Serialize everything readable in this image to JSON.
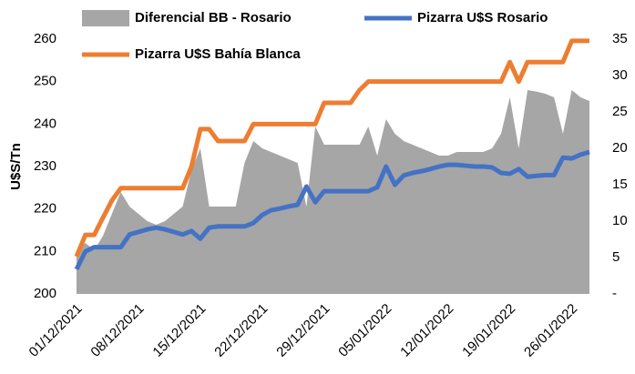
{
  "chart_data": {
    "type": "line",
    "y_label": "U$S/Tn",
    "legend": "top",
    "categories": [
      "01/12/2021",
      null,
      null,
      null,
      null,
      null,
      null,
      "08/12/2021",
      null,
      null,
      null,
      null,
      null,
      null,
      "15/12/2021",
      null,
      null,
      null,
      null,
      null,
      null,
      "22/12/2021",
      null,
      null,
      null,
      null,
      null,
      null,
      "29/12/2021",
      null,
      null,
      null,
      null,
      null,
      null,
      "05/01/2022",
      null,
      null,
      null,
      null,
      null,
      null,
      "12/01/2022",
      null,
      null,
      null,
      null,
      null,
      null,
      "19/01/2022",
      null,
      null,
      null,
      null,
      null,
      null,
      "26/01/2022",
      null,
      null
    ],
    "series": [
      {
        "name": "Diferencial BB - Rosario",
        "type": "area",
        "axis": "y2",
        "color": "#a6a6a6",
        "values": [
          6,
          7,
          6,
          8,
          11,
          14,
          12,
          11,
          10,
          9.5,
          10,
          11,
          12,
          17,
          20,
          12,
          12,
          12,
          12,
          18,
          21,
          20,
          19.5,
          19,
          18.5,
          18,
          12,
          23,
          20.5,
          20.5,
          20.5,
          20.5,
          20.5,
          23,
          19,
          24,
          22,
          21,
          20.5,
          20,
          19.5,
          19,
          19,
          19.5,
          19.5,
          19.5,
          19.5,
          20,
          22,
          27,
          20,
          28,
          27.8,
          27.5,
          27,
          22,
          28,
          27,
          26.5
        ]
      },
      {
        "name": "Pizarra U$S Rosario",
        "type": "line",
        "color": "#4472c4",
        "values": [
          205.8,
          210,
          211,
          211,
          211,
          211,
          214,
          214.6,
          215.2,
          215.6,
          215.2,
          214.6,
          214,
          214.8,
          213,
          215.6,
          215.9,
          215.9,
          215.9,
          215.9,
          216.7,
          218.6,
          219.7,
          220.1,
          220.6,
          221,
          225.3,
          221.6,
          224.2,
          224.2,
          224.2,
          224.2,
          224.2,
          224.2,
          225.1,
          230,
          225.7,
          227.9,
          228.5,
          228.9,
          229.4,
          230,
          230.4,
          230.4,
          230.2,
          230,
          230,
          229.8,
          228.5,
          228.3,
          229.4,
          227.6,
          227.8,
          228,
          228,
          232.1,
          231.9,
          232.8,
          233.4
        ]
      },
      {
        "name": "Pizarra U$S Bahía Blanca",
        "type": "line",
        "color": "#ed7d31",
        "values": [
          208.8,
          213.9,
          213.9,
          218,
          222,
          224.9,
          224.9,
          224.9,
          224.9,
          224.9,
          224.9,
          224.9,
          224.9,
          230,
          238.8,
          238.8,
          236,
          236,
          236,
          236,
          240,
          240,
          240,
          240,
          240,
          240,
          240,
          240,
          245,
          245,
          245,
          245,
          248,
          250,
          250,
          250,
          250,
          250,
          250,
          250,
          250,
          250,
          250,
          250,
          250,
          250,
          250,
          250,
          250,
          254.6,
          250,
          254.6,
          254.6,
          254.6,
          254.6,
          254.6,
          259.6,
          259.6,
          259.6
        ]
      }
    ],
    "ylim": [
      200,
      260
    ],
    "yticks": [
      200,
      210,
      220,
      230,
      240,
      250,
      260
    ],
    "y2lim": [
      0,
      35
    ],
    "y2ticks": [
      {
        "value": 0,
        "label": "-"
      },
      5,
      10,
      15,
      20,
      25,
      30,
      35
    ]
  }
}
